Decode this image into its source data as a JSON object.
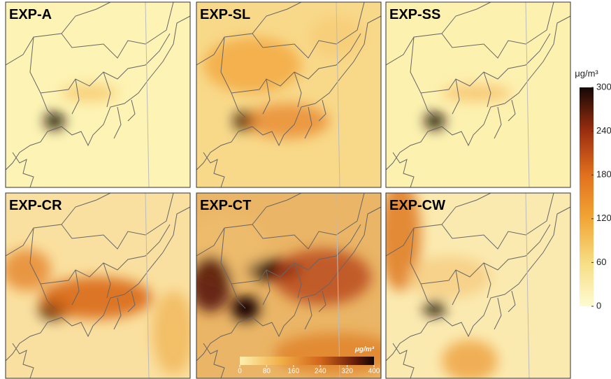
{
  "panels": [
    {
      "label": "EXP-A"
    },
    {
      "label": "EXP-SL"
    },
    {
      "label": "EXP-SS"
    },
    {
      "label": "EXP-CR"
    },
    {
      "label": "EXP-CT"
    },
    {
      "label": "EXP-CW"
    }
  ],
  "colorbar": {
    "unit": "μg/m³",
    "lim": [
      0,
      300
    ],
    "ticks": [
      0,
      60,
      120,
      180,
      240,
      300
    ]
  },
  "inset_colorbar": {
    "unit": "μg/m³",
    "lim": [
      0,
      400
    ],
    "ticks": [
      0,
      80,
      160,
      240,
      320,
      400
    ]
  }
}
